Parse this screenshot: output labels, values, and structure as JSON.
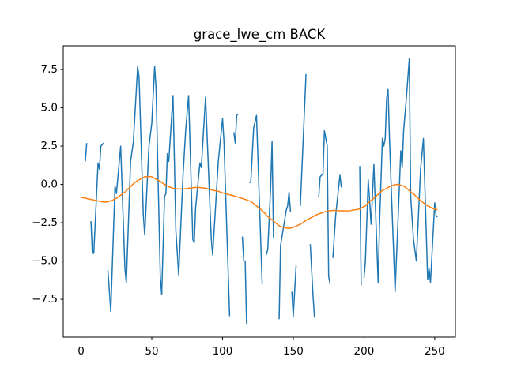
{
  "chart_data": {
    "type": "line",
    "title": "grace_lwe_cm BACK",
    "x": [
      0,
      3,
      4,
      5,
      7,
      8,
      9,
      12,
      13,
      14,
      16,
      17,
      19,
      21,
      24,
      25,
      28,
      31,
      32,
      35,
      37,
      40,
      41,
      44,
      45,
      48,
      50,
      52,
      53,
      56,
      57,
      59,
      60,
      61,
      62,
      65,
      67,
      69,
      72,
      74,
      76,
      79,
      80,
      81,
      84,
      85,
      88,
      92,
      93,
      97,
      100,
      101,
      105,
      107,
      108,
      109,
      110,
      111,
      112,
      114,
      115,
      116,
      117,
      118,
      119,
      120,
      122,
      124,
      128,
      129,
      131,
      132,
      134,
      135,
      136,
      138,
      140,
      141,
      145,
      146,
      147,
      148,
      148.5,
      149,
      150,
      152,
      153,
      155,
      159,
      160,
      162,
      164,
      165,
      166,
      168,
      169,
      171,
      172,
      174,
      175,
      176,
      177,
      178,
      180,
      183,
      184,
      190,
      197,
      198,
      199,
      200,
      201,
      203,
      205,
      207,
      210,
      211,
      213,
      214,
      215,
      216,
      217,
      218,
      220,
      222,
      224,
      226,
      227,
      228,
      230,
      232,
      233,
      235,
      237,
      240,
      242,
      245,
      246,
      247,
      250,
      251,
      252
    ],
    "series": [
      {
        "color": "#1f77b4",
        "values": [
          null,
          1.5,
          2.7,
          null,
          -2.4,
          -4.5,
          -4.5,
          1.4,
          1.0,
          2.5,
          2.7,
          null,
          -5.6,
          -8.3,
          -0.1,
          -0.6,
          2.5,
          -5.5,
          -6.4,
          1.5,
          2.8,
          7.7,
          7.0,
          -2.0,
          -3.3,
          2.5,
          4.0,
          7.7,
          6.3,
          -6.0,
          -7.2,
          -0.8,
          -0.6,
          2.0,
          1.5,
          5.8,
          -3.0,
          -5.9,
          0.5,
          3.6,
          5.8,
          -3.6,
          -3.8,
          -1.5,
          1.4,
          1.1,
          5.7,
          -3.5,
          -4.6,
          1.5,
          4.3,
          2.8,
          -8.6,
          null,
          3.4,
          2.7,
          4.5,
          4.6,
          null,
          -3.4,
          -5.0,
          -5.0,
          -9.1,
          null,
          0.1,
          0.2,
          3.7,
          4.5,
          -6.5,
          null,
          -4.6,
          -4.2,
          -0.2,
          2.8,
          -3.5,
          null,
          -8.8,
          -4.0,
          -1.7,
          -1.4,
          -0.5,
          -1.8,
          null,
          -7.0,
          -8.6,
          -5.3,
          null,
          -1.4,
          7.2,
          null,
          -3.9,
          -7.3,
          -8.7,
          null,
          -0.8,
          0.5,
          0.7,
          3.5,
          2.5,
          -6.0,
          -6.5,
          null,
          -4.8,
          -2.0,
          0.6,
          -0.2,
          null,
          1.2,
          -6.6,
          null,
          -6.1,
          -5.0,
          0.3,
          -2.6,
          1.3,
          -6.4,
          -2.5,
          3.0,
          2.5,
          3.0,
          5.6,
          6.2,
          3.0,
          -2.1,
          -7.0,
          -2.5,
          2.2,
          1.1,
          3.5,
          5.7,
          8.2,
          -0.8,
          -3.6,
          -5.0,
          1.0,
          3.0,
          -6.2,
          -5.5,
          -6.4,
          -1.2,
          -2.1,
          -2.1
        ]
      },
      {
        "color": "#ff7f0e",
        "values": [
          -0.85,
          -0.9,
          -0.92,
          -0.95,
          -0.98,
          -1.0,
          -1.02,
          -1.08,
          -1.1,
          -1.12,
          -1.15,
          -1.15,
          -1.13,
          -1.08,
          -0.95,
          -0.9,
          -0.7,
          -0.5,
          -0.4,
          -0.15,
          0.05,
          0.25,
          0.3,
          0.45,
          0.5,
          0.52,
          0.5,
          0.4,
          0.35,
          0.2,
          0.12,
          0.0,
          -0.05,
          -0.1,
          -0.15,
          -0.25,
          -0.28,
          -0.3,
          -0.3,
          -0.28,
          -0.25,
          -0.22,
          -0.2,
          -0.2,
          -0.2,
          -0.22,
          -0.25,
          -0.35,
          -0.38,
          -0.45,
          -0.55,
          -0.58,
          -0.68,
          -0.73,
          -0.75,
          -0.78,
          -0.8,
          -0.83,
          -0.86,
          -0.92,
          -0.95,
          -0.98,
          -1.0,
          -1.05,
          -1.08,
          -1.1,
          -1.25,
          -1.4,
          -1.7,
          -1.8,
          -2.0,
          -2.1,
          -2.25,
          -2.3,
          -2.38,
          -2.55,
          -2.7,
          -2.75,
          -2.85,
          -2.85,
          -2.85,
          -2.85,
          -2.84,
          -2.83,
          -2.8,
          -2.72,
          -2.68,
          -2.6,
          -2.35,
          -2.3,
          -2.2,
          -2.1,
          -2.05,
          -2.0,
          -1.92,
          -1.9,
          -1.83,
          -1.8,
          -1.75,
          -1.73,
          -1.72,
          -1.71,
          -1.7,
          -1.7,
          -1.72,
          -1.73,
          -1.72,
          -1.6,
          -1.55,
          -1.5,
          -1.45,
          -1.4,
          -1.2,
          -1.05,
          -0.9,
          -0.65,
          -0.55,
          -0.4,
          -0.35,
          -0.3,
          -0.25,
          -0.2,
          -0.15,
          -0.08,
          0.0,
          0.0,
          -0.05,
          -0.08,
          -0.1,
          -0.25,
          -0.4,
          -0.48,
          -0.6,
          -0.8,
          -1.05,
          -1.2,
          -1.4,
          -1.45,
          -1.5,
          -1.62,
          -1.64,
          -1.65
        ]
      }
    ],
    "xlim": [
      -12.6,
      264.6
    ],
    "xticks": [
      0,
      50,
      100,
      150,
      200,
      250
    ],
    "ylim": [
      -9.97,
      9.05
    ],
    "yticks": [
      {
        "value": -7.5,
        "label": "−7.5"
      },
      {
        "value": -5,
        "label": "−5.0"
      },
      {
        "value": -2.5,
        "label": "−2.5"
      },
      {
        "value": 0,
        "label": "0.0"
      },
      2.5,
      {
        "value": 5,
        "label": "5.0"
      },
      7.5
    ],
    "grid": false
  }
}
